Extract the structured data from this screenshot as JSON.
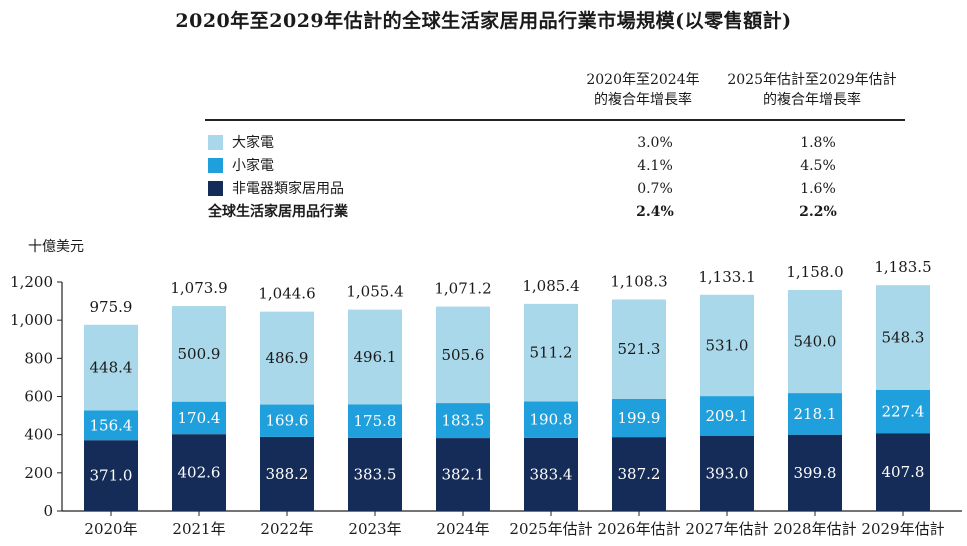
{
  "title": "2020年至2029年估計的全球生活家居用品行業市場規模(以零售額計)",
  "table": {
    "col1_header": [
      "2020年至2024年",
      "的複合年增長率"
    ],
    "col2_header": [
      "2025年估計至2029年估計",
      "的複合年增長率"
    ],
    "rows": [
      {
        "label": "大家電",
        "color": "#a9d8ea",
        "c1": "3.0%",
        "c2": "1.8%"
      },
      {
        "label": "小家電",
        "color": "#1fa0dc",
        "c1": "4.1%",
        "c2": "4.5%"
      },
      {
        "label": "非電器類家居用品",
        "color": "#142c57",
        "c1": "0.7%",
        "c2": "1.6%"
      },
      {
        "label": "全球生活家居用品行業",
        "color": null,
        "c1": "2.4%",
        "c2": "2.2%",
        "bold": true
      }
    ]
  },
  "chart_data": {
    "type": "bar",
    "stacked": true,
    "ylabel": "十億美元",
    "ylim": [
      0,
      1200
    ],
    "yticks": [
      "0",
      "200",
      "400",
      "600",
      "800",
      "1,000",
      "1,200"
    ],
    "categories": [
      "2020年",
      "2021年",
      "2022年",
      "2023年",
      "2024年",
      "2025年估計",
      "2026年估計",
      "2027年估計",
      "2028年估計",
      "2029年估計"
    ],
    "series": [
      {
        "name": "非電器類家居用品",
        "color": "#142c57",
        "values": [
          371.0,
          402.6,
          388.2,
          383.5,
          382.1,
          383.4,
          387.2,
          393.0,
          399.8,
          407.8
        ]
      },
      {
        "name": "小家電",
        "color": "#1fa0dc",
        "values": [
          156.4,
          170.4,
          169.6,
          175.8,
          183.5,
          190.8,
          199.9,
          209.1,
          218.1,
          227.4
        ]
      },
      {
        "name": "大家電",
        "color": "#a9d8ea",
        "values": [
          448.4,
          500.9,
          486.9,
          496.1,
          505.6,
          511.2,
          521.3,
          531.0,
          540.0,
          548.3
        ]
      }
    ],
    "totals": [
      "975.9",
      "1,073.9",
      "1,044.6",
      "1,055.4",
      "1,071.2",
      "1,085.4",
      "1,108.3",
      "1,133.1",
      "1,158.0",
      "1,183.5"
    ],
    "value_labels": [
      [
        "371.0",
        "402.6",
        "388.2",
        "383.5",
        "382.1",
        "383.4",
        "387.2",
        "393.0",
        "399.8",
        "407.8"
      ],
      [
        "156.4",
        "170.4",
        "169.6",
        "175.8",
        "183.5",
        "190.8",
        "199.9",
        "209.1",
        "218.1",
        "227.4"
      ],
      [
        "448.4",
        "500.9",
        "486.9",
        "496.1",
        "505.6",
        "511.2",
        "521.3",
        "531.0",
        "540.0",
        "548.3"
      ]
    ],
    "label_colors": [
      "#ffffff",
      "#ffffff",
      "#1a1a1a"
    ],
    "grid": false
  }
}
